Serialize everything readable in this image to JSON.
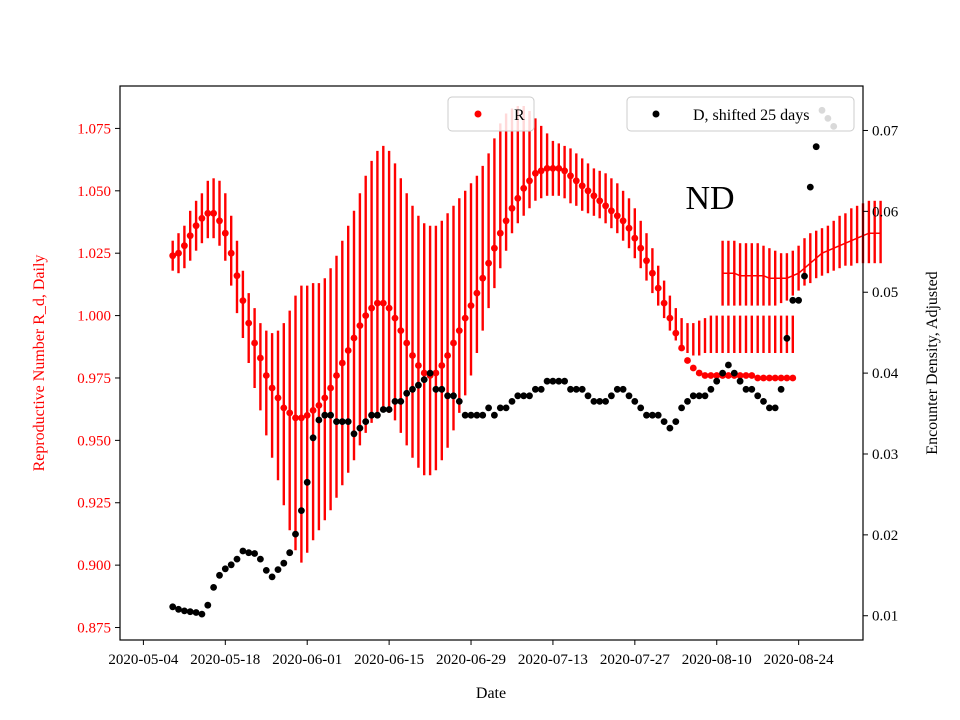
{
  "chart_data": {
    "type": "scatter",
    "annotation": "ND",
    "xlabel": "Date",
    "ylabel_left": "Reproductive Number R_d, Daily",
    "ylabel_right": "Encounter Density, Adjusted",
    "xlim": [
      "2020-04-30",
      "2020-09-04"
    ],
    "ylim_left": [
      0.87,
      1.092
    ],
    "ylim_right": [
      0.007,
      0.0755
    ],
    "x_ticks": [
      "2020-05-04",
      "2020-05-18",
      "2020-06-01",
      "2020-06-15",
      "2020-06-29",
      "2020-07-13",
      "2020-07-27",
      "2020-08-10",
      "2020-08-24"
    ],
    "y_ticks_left": [
      "0.875",
      "0.900",
      "0.925",
      "0.950",
      "0.975",
      "1.000",
      "1.025",
      "1.050",
      "1.075"
    ],
    "y_ticks_right": [
      "0.01",
      "0.02",
      "0.03",
      "0.04",
      "0.05",
      "0.06",
      "0.07"
    ],
    "grid": false,
    "colors": {
      "R": "#ff0000",
      "D": "#000000",
      "axis_left": "#ff0000",
      "axis_right": "#000000"
    },
    "legend": [
      {
        "label": "R",
        "color": "#ff0000",
        "placement": "top-center"
      },
      {
        "label": "D, shifted 25 days",
        "color": "#000000",
        "placement": "top-right"
      }
    ],
    "series": [
      {
        "name": "R",
        "axis": "left",
        "kind": "points_with_errorbars",
        "x_start": "2020-05-09",
        "y": [
          1.024,
          1.025,
          1.028,
          1.032,
          1.036,
          1.039,
          1.041,
          1.041,
          1.038,
          1.033,
          1.025,
          1.016,
          1.006,
          0.997,
          0.989,
          0.983,
          0.976,
          0.971,
          0.967,
          0.963,
          0.961,
          0.959,
          0.959,
          0.96,
          0.962,
          0.964,
          0.967,
          0.971,
          0.976,
          0.981,
          0.986,
          0.991,
          0.996,
          1.0,
          1.003,
          1.005,
          1.005,
          1.003,
          0.999,
          0.994,
          0.989,
          0.984,
          0.98,
          0.977,
          0.976,
          0.977,
          0.98,
          0.984,
          0.989,
          0.994,
          0.999,
          1.004,
          1.009,
          1.015,
          1.021,
          1.027,
          1.033,
          1.038,
          1.043,
          1.047,
          1.051,
          1.054,
          1.057,
          1.058,
          1.059,
          1.059,
          1.059,
          1.058,
          1.056,
          1.054,
          1.052,
          1.05,
          1.048,
          1.046,
          1.044,
          1.042,
          1.04,
          1.038,
          1.035,
          1.031,
          1.027,
          1.022,
          1.017,
          1.011,
          1.005,
          0.999,
          0.993,
          0.987,
          0.982,
          0.979,
          0.977,
          0.976,
          0.976,
          0.976,
          0.976,
          0.976,
          0.976,
          0.976,
          0.976,
          0.976,
          0.975,
          0.975,
          0.975,
          0.975,
          0.975,
          0.975,
          0.975
        ],
        "y_low": [
          1.018,
          1.017,
          1.019,
          1.022,
          1.026,
          1.029,
          1.031,
          1.031,
          1.028,
          1.022,
          1.012,
          1.001,
          0.991,
          0.981,
          0.971,
          0.962,
          0.952,
          0.943,
          0.934,
          0.924,
          0.914,
          0.906,
          0.901,
          0.905,
          0.91,
          0.914,
          0.918,
          0.922,
          0.927,
          0.932,
          0.937,
          0.942,
          0.948,
          0.953,
          0.957,
          0.96,
          0.962,
          0.961,
          0.958,
          0.953,
          0.948,
          0.943,
          0.939,
          0.936,
          0.936,
          0.938,
          0.942,
          0.947,
          0.954,
          0.961,
          0.968,
          0.976,
          0.985,
          0.994,
          1.003,
          1.011,
          1.019,
          1.026,
          1.033,
          1.037,
          1.04,
          1.043,
          1.046,
          1.047,
          1.048,
          1.048,
          1.048,
          1.047,
          1.045,
          1.044,
          1.042,
          1.041,
          1.04,
          1.039,
          1.037,
          1.035,
          1.033,
          1.03,
          1.027,
          1.023,
          1.019,
          1.014,
          1.009,
          1.004,
          0.999,
          0.994,
          0.99,
          0.987,
          0.985,
          0.984,
          0.984,
          0.985,
          0.985,
          0.985,
          0.985,
          0.985,
          0.985,
          0.985,
          0.985,
          0.985,
          0.985,
          0.985,
          0.985,
          0.985,
          0.985,
          0.985,
          0.985
        ],
        "y_high": [
          1.03,
          1.033,
          1.036,
          1.042,
          1.046,
          1.049,
          1.054,
          1.055,
          1.054,
          1.049,
          1.04,
          1.03,
          1.018,
          1.009,
          1.003,
          0.997,
          0.994,
          0.993,
          0.994,
          0.997,
          1.002,
          1.008,
          1.012,
          1.012,
          1.013,
          1.013,
          1.015,
          1.019,
          1.024,
          1.03,
          1.036,
          1.042,
          1.049,
          1.056,
          1.062,
          1.066,
          1.068,
          1.066,
          1.061,
          1.055,
          1.049,
          1.044,
          1.04,
          1.037,
          1.036,
          1.036,
          1.038,
          1.041,
          1.044,
          1.047,
          1.05,
          1.053,
          1.056,
          1.06,
          1.065,
          1.071,
          1.077,
          1.081,
          1.083,
          1.084,
          1.084,
          1.082,
          1.079,
          1.076,
          1.073,
          1.07,
          1.069,
          1.068,
          1.067,
          1.065,
          1.063,
          1.061,
          1.059,
          1.058,
          1.057,
          1.055,
          1.053,
          1.05,
          1.047,
          1.043,
          1.038,
          1.033,
          1.027,
          1.02,
          1.014,
          1.008,
          1.003,
          0.999,
          0.997,
          0.997,
          0.998,
          0.999,
          1.0,
          1.0,
          1.0,
          1.0,
          1.0,
          1.0,
          1.0,
          1.0,
          1.0,
          1.0,
          1.0,
          1.0,
          1.0,
          1.0,
          1.0
        ]
      },
      {
        "name": "R",
        "axis": "left",
        "kind": "line_with_errorbars",
        "x_start": "2020-08-11",
        "y": [
          1.017,
          1.017,
          1.017,
          1.016,
          1.016,
          1.016,
          1.016,
          1.016,
          1.015,
          1.015,
          1.015,
          1.015,
          1.016,
          1.017,
          1.019,
          1.021,
          1.023,
          1.025,
          1.026,
          1.027,
          1.028,
          1.029,
          1.03,
          1.031,
          1.032,
          1.033,
          1.033,
          1.033
        ],
        "y_low": [
          1.004,
          1.004,
          1.004,
          1.004,
          1.004,
          1.004,
          1.004,
          1.004,
          1.004,
          1.004,
          1.005,
          1.006,
          1.008,
          1.01,
          1.012,
          1.013,
          1.015,
          1.016,
          1.017,
          1.018,
          1.019,
          1.02,
          1.02,
          1.021,
          1.021,
          1.021,
          1.021,
          1.021
        ],
        "y_high": [
          1.03,
          1.03,
          1.03,
          1.029,
          1.029,
          1.029,
          1.029,
          1.028,
          1.027,
          1.026,
          1.025,
          1.025,
          1.026,
          1.028,
          1.031,
          1.033,
          1.034,
          1.035,
          1.036,
          1.038,
          1.04,
          1.041,
          1.043,
          1.044,
          1.045,
          1.046,
          1.046,
          1.046
        ]
      },
      {
        "name": "D, shifted 25 days",
        "axis": "right",
        "kind": "points",
        "x_start": "2020-05-09",
        "y": [
          0.0111,
          0.0108,
          0.0106,
          0.0105,
          0.0104,
          0.0102,
          0.0113,
          0.0135,
          0.015,
          0.0158,
          0.0163,
          0.017,
          0.018,
          0.0178,
          0.0177,
          0.017,
          0.0156,
          0.0148,
          0.0157,
          0.0165,
          0.0178,
          0.0201,
          0.023,
          0.0265,
          0.032,
          0.0342,
          0.0348,
          0.0348,
          0.034,
          0.034,
          0.034,
          0.0325,
          0.0332,
          0.034,
          0.0348,
          0.0348,
          0.0355,
          0.0355,
          0.0365,
          0.0365,
          0.0375,
          0.038,
          0.0385,
          0.0392,
          0.04,
          0.038,
          0.038,
          0.0372,
          0.0372,
          0.0365,
          0.0348,
          0.0348,
          0.0348,
          0.0348,
          0.0357,
          0.0348,
          0.0357,
          0.0357,
          0.0365,
          0.0372,
          0.0372,
          0.0372,
          0.038,
          0.038,
          0.039,
          0.039,
          0.039,
          0.039,
          0.038,
          0.038,
          0.038,
          0.0372,
          0.0365,
          0.0365,
          0.0365,
          0.0372,
          0.038,
          0.038,
          0.0372,
          0.0365,
          0.0357,
          0.0348,
          0.0348,
          0.0348,
          0.034,
          0.0332,
          0.034,
          0.0357,
          0.0365,
          0.0372,
          0.0372,
          0.0372,
          0.038,
          0.039,
          0.04,
          0.041,
          0.04,
          0.039,
          0.038,
          0.038,
          0.0372,
          0.0365,
          0.0357,
          0.0357,
          0.038,
          0.0443,
          0.049,
          0.049,
          0.052,
          0.063,
          0.068,
          0.0725,
          0.0715,
          0.0705
        ]
      }
    ]
  }
}
